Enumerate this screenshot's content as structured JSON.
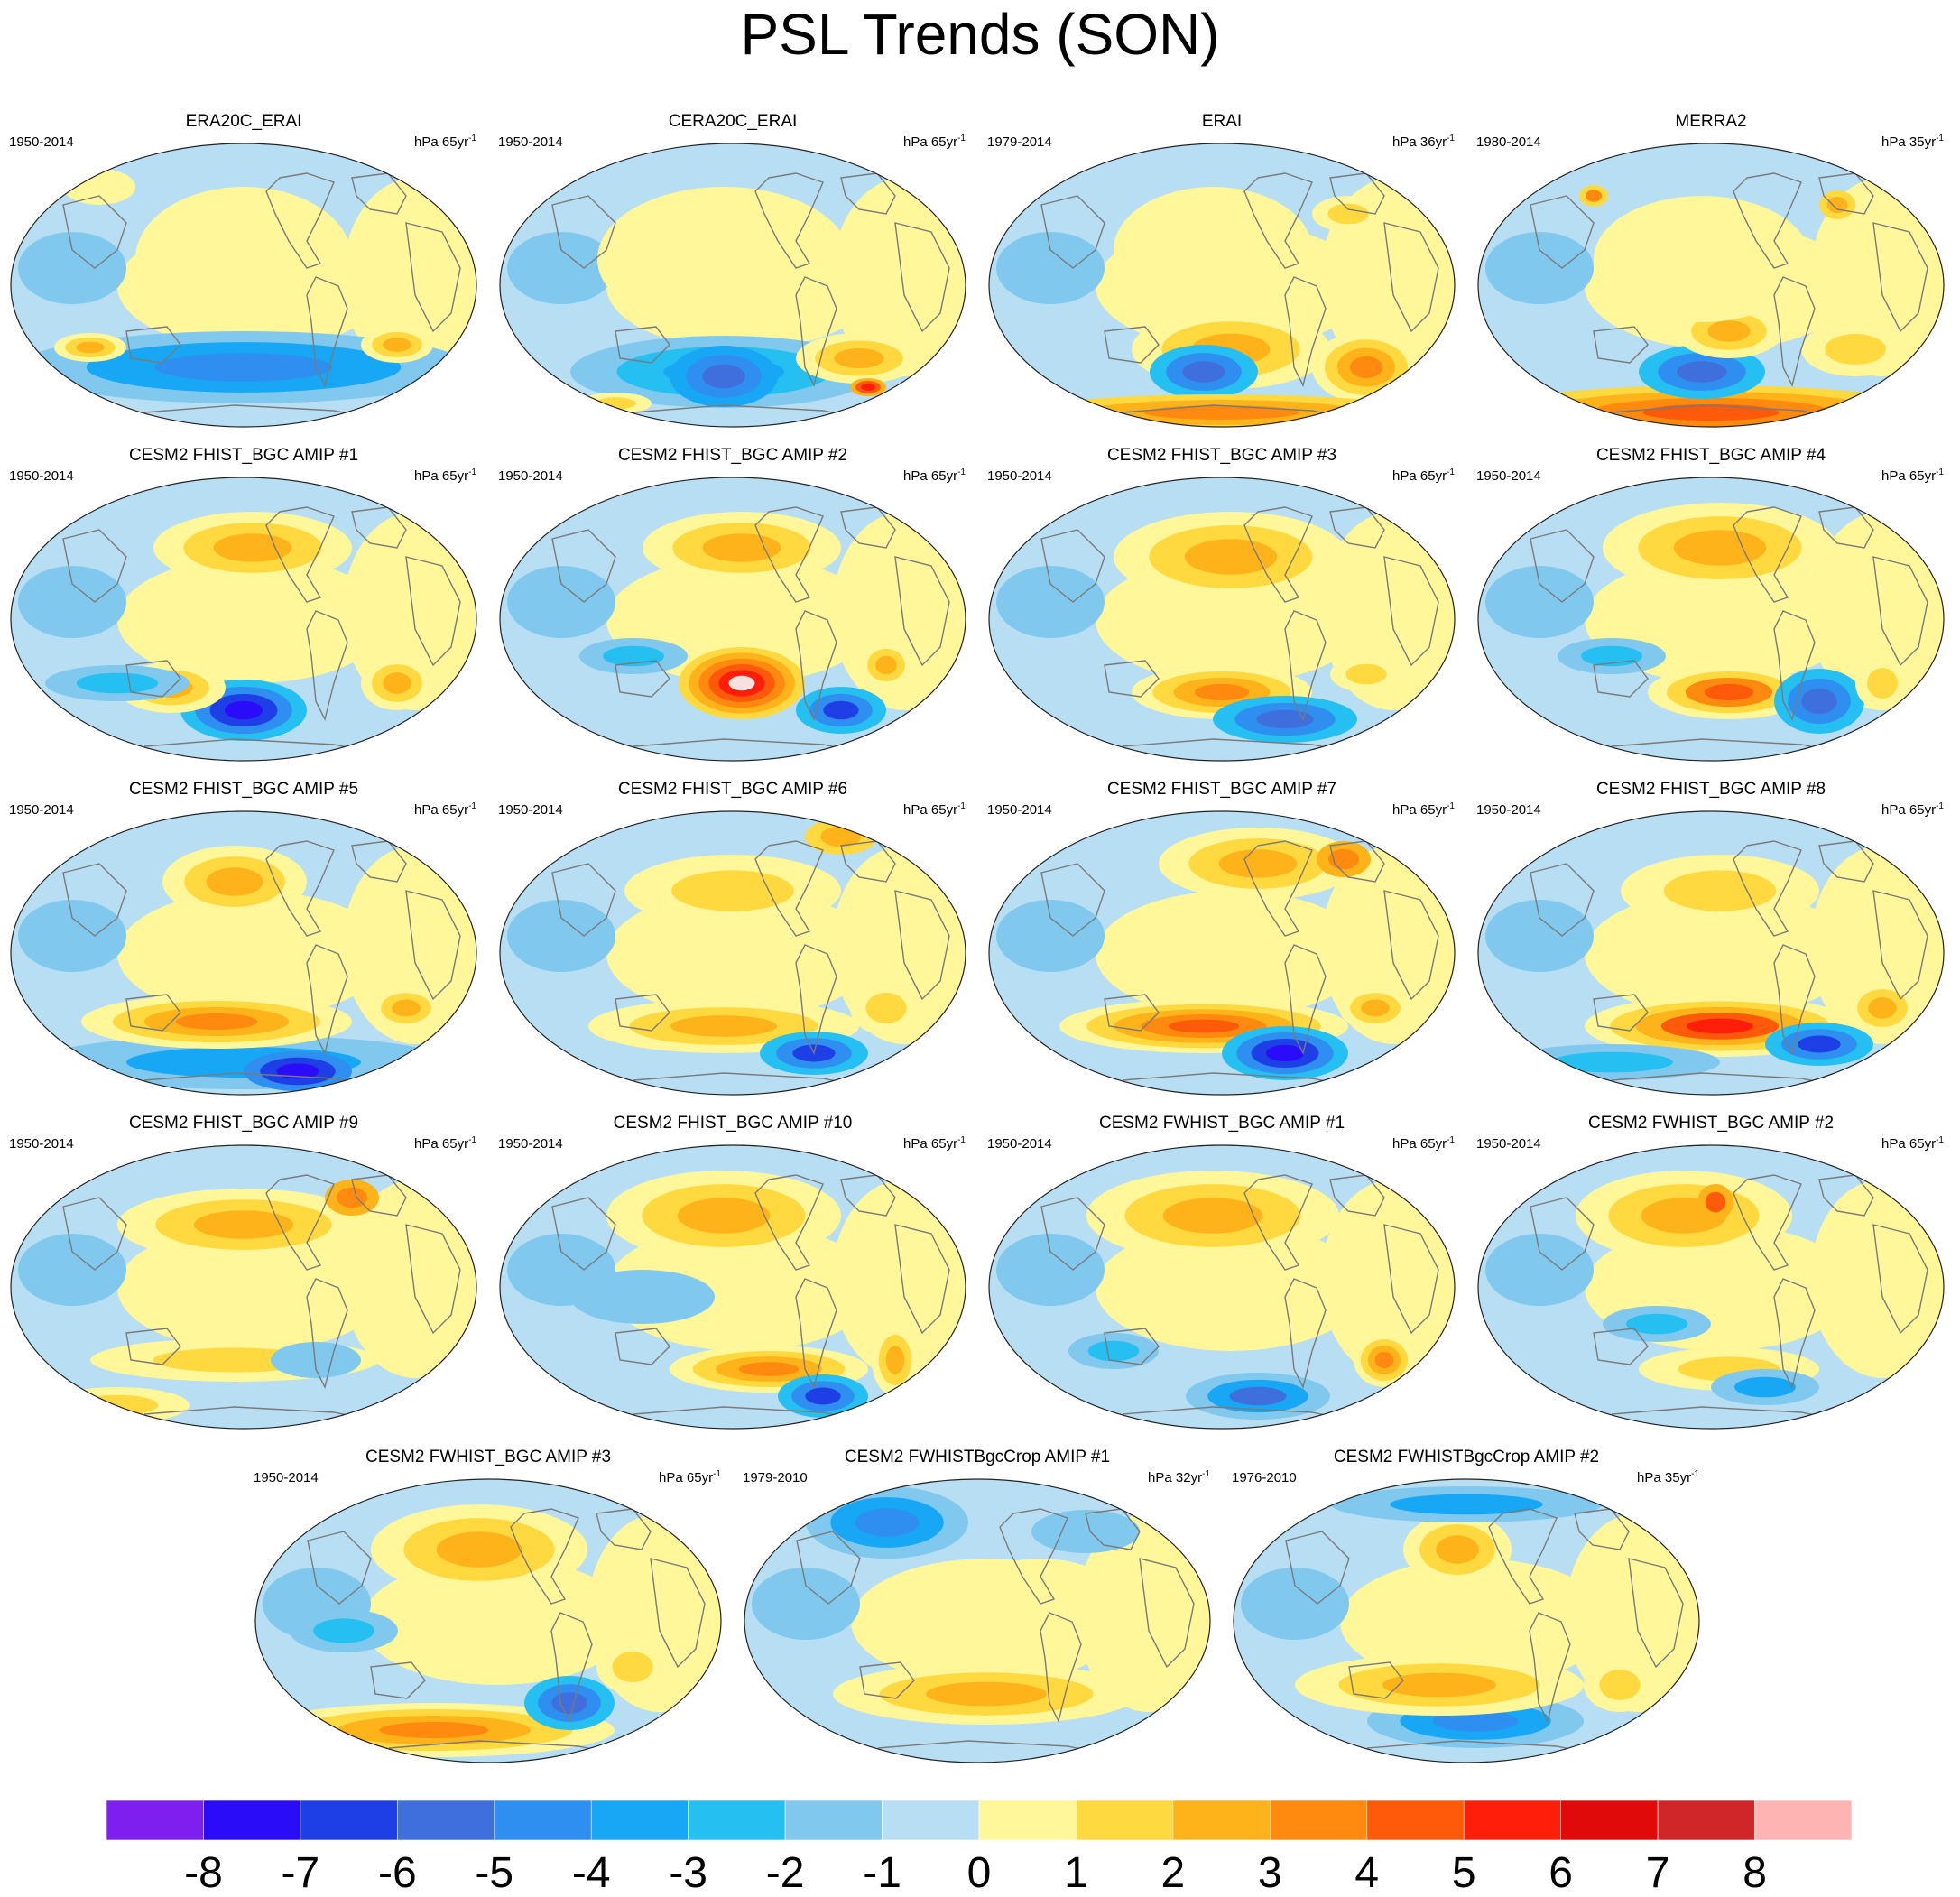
{
  "title": "PSL Trends (SON)",
  "panels": [
    {
      "title": "ERA20C_ERAI",
      "years": "1950-2014",
      "units": "hPa 65yr",
      "units_sup": "-1"
    },
    {
      "title": "CERA20C_ERAI",
      "years": "1950-2014",
      "units": "hPa 65yr",
      "units_sup": "-1"
    },
    {
      "title": "ERAI",
      "years": "1979-2014",
      "units": "hPa 36yr",
      "units_sup": "-1"
    },
    {
      "title": "MERRA2",
      "years": "1980-2014",
      "units": "hPa 35yr",
      "units_sup": "-1"
    },
    {
      "title": "CESM2 FHIST_BGC AMIP #1",
      "years": "1950-2014",
      "units": "hPa 65yr",
      "units_sup": "-1"
    },
    {
      "title": "CESM2 FHIST_BGC AMIP #2",
      "years": "1950-2014",
      "units": "hPa 65yr",
      "units_sup": "-1"
    },
    {
      "title": "CESM2 FHIST_BGC AMIP #3",
      "years": "1950-2014",
      "units": "hPa 65yr",
      "units_sup": "-1"
    },
    {
      "title": "CESM2 FHIST_BGC AMIP #4",
      "years": "1950-2014",
      "units": "hPa 65yr",
      "units_sup": "-1"
    },
    {
      "title": "CESM2 FHIST_BGC AMIP #5",
      "years": "1950-2014",
      "units": "hPa 65yr",
      "units_sup": "-1"
    },
    {
      "title": "CESM2 FHIST_BGC AMIP #6",
      "years": "1950-2014",
      "units": "hPa 65yr",
      "units_sup": "-1"
    },
    {
      "title": "CESM2 FHIST_BGC AMIP #7",
      "years": "1950-2014",
      "units": "hPa 65yr",
      "units_sup": "-1"
    },
    {
      "title": "CESM2 FHIST_BGC AMIP #8",
      "years": "1950-2014",
      "units": "hPa 65yr",
      "units_sup": "-1"
    },
    {
      "title": "CESM2 FHIST_BGC AMIP #9",
      "years": "1950-2014",
      "units": "hPa 65yr",
      "units_sup": "-1"
    },
    {
      "title": "CESM2 FHIST_BGC AMIP #10",
      "years": "1950-2014",
      "units": "hPa 65yr",
      "units_sup": "-1"
    },
    {
      "title": "CESM2 FWHIST_BGC AMIP #1",
      "years": "1950-2014",
      "units": "hPa 65yr",
      "units_sup": "-1"
    },
    {
      "title": "CESM2 FWHIST_BGC AMIP #2",
      "years": "1950-2014",
      "units": "hPa 65yr",
      "units_sup": "-1"
    },
    {
      "title": "CESM2 FWHIST_BGC AMIP #3",
      "years": "1950-2014",
      "units": "hPa 65yr",
      "units_sup": "-1"
    },
    {
      "title": "CESM2 FWHISTBgcCrop AMIP #1",
      "years": "1979-2010",
      "units": "hPa 32yr",
      "units_sup": "-1"
    },
    {
      "title": "CESM2 FWHISTBgcCrop AMIP #2",
      "years": "1976-2010",
      "units": "hPa 35yr",
      "units_sup": "-1"
    }
  ],
  "colorbar": {
    "colors": [
      "#7f1fef",
      "#2b0cf8",
      "#1f3fe6",
      "#3f6fdc",
      "#2f8ff0",
      "#17a7f5",
      "#25bff2",
      "#80c8ee",
      "#b8def3",
      "#fff799",
      "#ffd93f",
      "#ffb31a",
      "#ff8a0f",
      "#ff5a0a",
      "#ff1e0a",
      "#e00a0a",
      "#d0262a",
      "#ffb4b4"
    ],
    "ticks": [
      "-8",
      "-7",
      "-6",
      "-5",
      "-4",
      "-3",
      "-2",
      "-1",
      "0",
      "1",
      "2",
      "3",
      "4",
      "5",
      "6",
      "7",
      "8"
    ]
  }
}
